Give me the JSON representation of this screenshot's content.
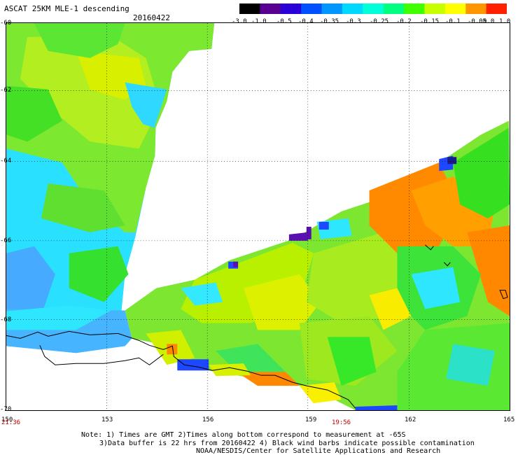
{
  "header": {
    "title": "ASCAT 25KM MLE-1 descending",
    "date": "20160422"
  },
  "colorbar": {
    "labels": [
      "-3.0",
      "-1.0",
      "-0.5",
      "-0.4",
      "-0.35",
      "-0.3",
      "-0.25",
      "-0.2",
      "-0.15",
      "-0.1",
      "-0.05",
      "0.0",
      "1.0"
    ],
    "colors": [
      "#000000",
      "#5a0090",
      "#2a00d8",
      "#0050ff",
      "#0096ff",
      "#00d8ff",
      "#00ffd8",
      "#00ff80",
      "#40ff00",
      "#c8ff00",
      "#ffff00",
      "#ff9600",
      "#ff2000"
    ]
  },
  "axes": {
    "lat_labels": [
      "-60",
      "-62",
      "-64",
      "-66",
      "-68",
      "-70"
    ],
    "lon_labels": [
      "150",
      "153",
      "156",
      "159",
      "162",
      "165"
    ],
    "times": [
      "21:36",
      "19:56"
    ]
  },
  "notes": {
    "line1": "Note: 1) Times are GMT 2)Times along bottom correspond to measurement at -65S",
    "line2": "3)Data buffer is 22 hrs from 20160422 4) Black wind barbs indicate possible contamination",
    "line3": "NOAA/NESDIS/Center for Satellite Applications and Research"
  },
  "palette": {
    "cyan": "#2fe0ff",
    "light_blue": "#3cb4ff",
    "green": "#36e626",
    "lime": "#90ee20",
    "yellow_green": "#d2f000",
    "yellow": "#f8f000",
    "orange": "#ff8800",
    "blue": "#1d48ff",
    "purple": "#5a10b0"
  }
}
